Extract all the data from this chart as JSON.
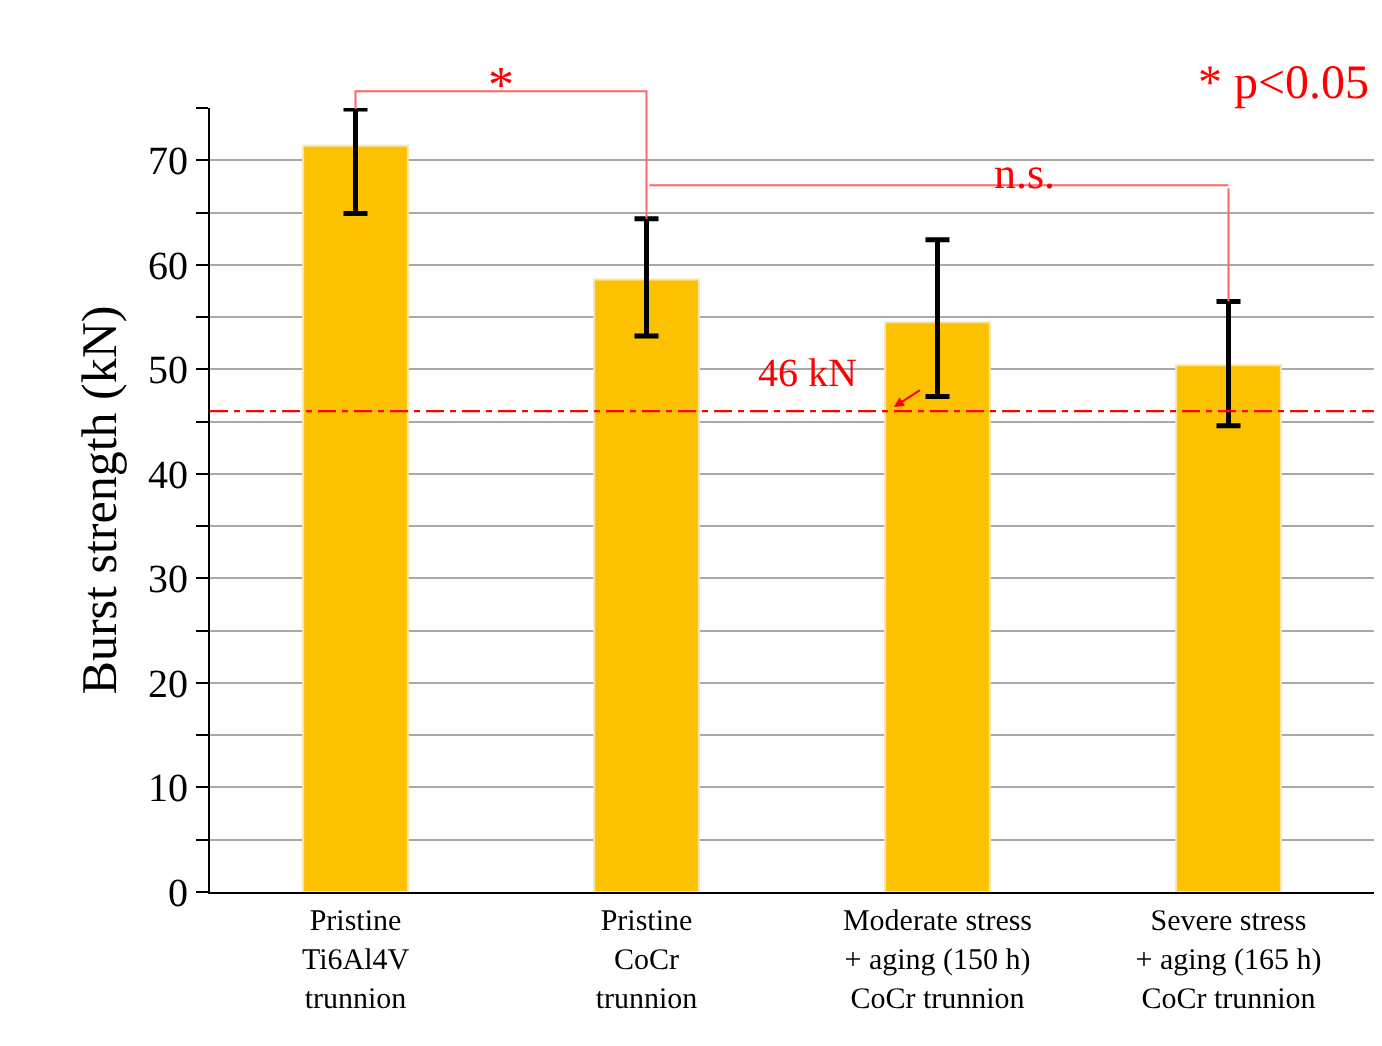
{
  "chart_data": {
    "type": "bar",
    "ylabel": "Burst strength (kN)",
    "categories": [
      "Pristine\nTi6Al4V\ntrunnion",
      "Pristine\nCoCr\ntrunnion",
      "Moderate stress\n+ aging (150 h)\nCoCr trunnion",
      "Severe stress\n+ aging (165 h)\nCoCr trunnion"
    ],
    "values": [
      71.4,
      58.6,
      54.5,
      50.4
    ],
    "errors": [
      [
        64.9,
        74.9
      ],
      [
        53.2,
        64.4
      ],
      [
        47.4,
        62.4
      ],
      [
        44.6,
        56.5
      ]
    ],
    "color": "#fcc200",
    "ylim": [
      0,
      75
    ],
    "yticks": [
      0,
      {
        "value": 5,
        "label": null
      },
      10,
      {
        "value": 15,
        "label": null
      },
      20,
      {
        "value": 25,
        "label": null
      },
      30,
      {
        "value": 35,
        "label": null
      },
      40,
      {
        "value": 45,
        "label": null
      },
      50,
      {
        "value": 55,
        "label": null
      },
      60,
      {
        "value": 65,
        "label": null
      },
      70,
      {
        "value": 75,
        "label": null
      }
    ],
    "grid": "y",
    "ref_lines": [
      {
        "axis": "y",
        "value": 46,
        "label": "46 kN",
        "color": "#ff0000",
        "line_style": "dashed"
      }
    ],
    "annotations": [
      "*",
      "n.s.",
      "* p<0.05"
    ]
  }
}
